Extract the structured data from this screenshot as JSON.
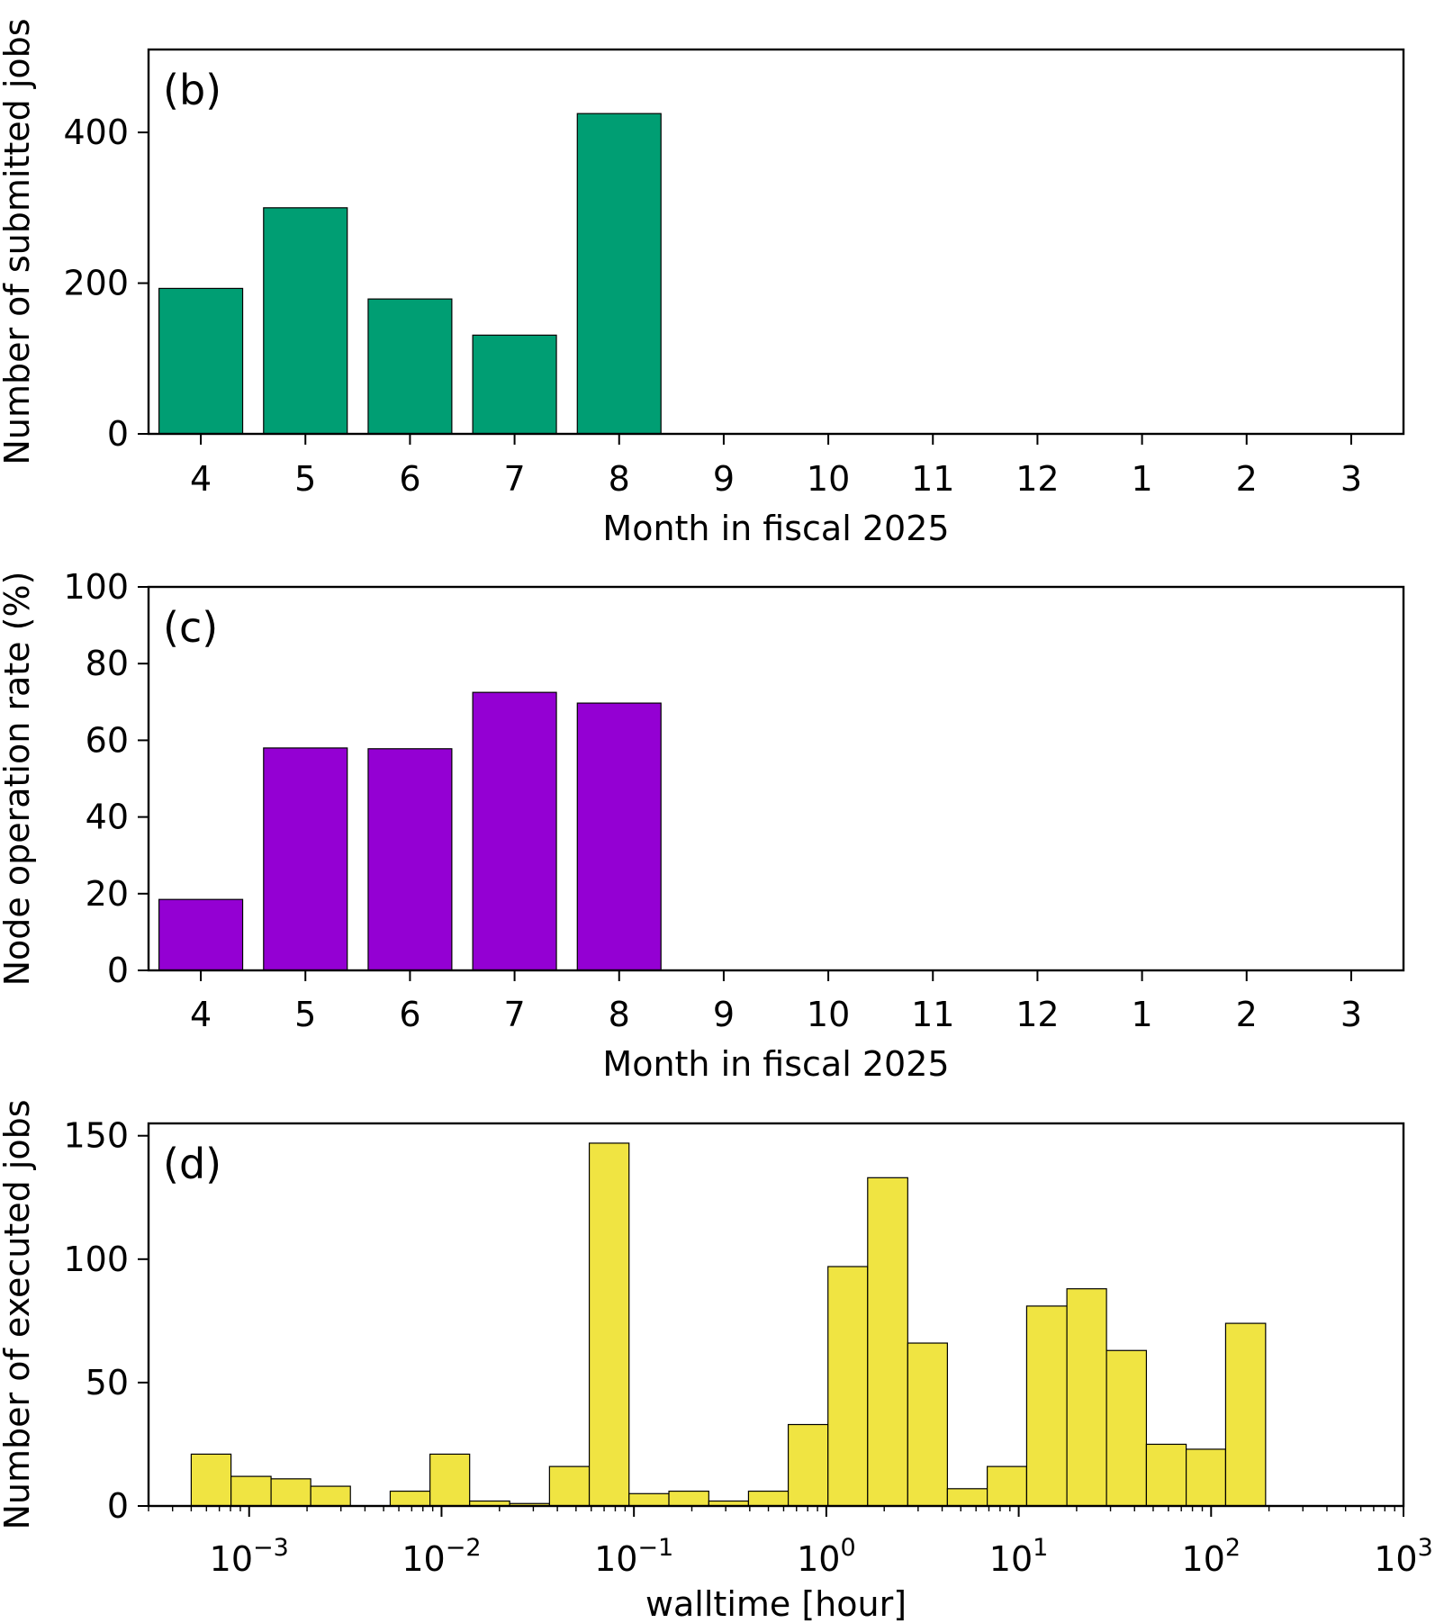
{
  "chart_data": [
    {
      "type": "bar",
      "panel_label": "(b)",
      "categories": [
        "4",
        "5",
        "6",
        "7",
        "8",
        "9",
        "10",
        "11",
        "12",
        "1",
        "2",
        "3"
      ],
      "values": [
        193,
        300,
        179,
        131,
        425,
        0,
        0,
        0,
        0,
        0,
        0,
        0
      ],
      "xlabel": "Month in fiscal 2025",
      "ylabel": "Number of submitted jobs",
      "ylim": [
        0,
        510
      ],
      "yticks": [
        0,
        200,
        400
      ],
      "color": "#009e73",
      "grid": false
    },
    {
      "type": "bar",
      "panel_label": "(c)",
      "categories": [
        "4",
        "5",
        "6",
        "7",
        "8",
        "9",
        "10",
        "11",
        "12",
        "1",
        "2",
        "3"
      ],
      "values": [
        18.5,
        58,
        57.8,
        72.5,
        69.7,
        0,
        0,
        0,
        0,
        0,
        0,
        0
      ],
      "xlabel": "Month in fiscal 2025",
      "ylabel": "Node operation rate (%)",
      "ylim": [
        0,
        100
      ],
      "yticks": [
        0,
        20,
        40,
        60,
        80,
        100
      ],
      "color": "#9400d3",
      "grid": false
    },
    {
      "type": "bar",
      "subtype": "histogram",
      "panel_label": "(d)",
      "xscale": "log",
      "xlim": [
        0.0003,
        1000
      ],
      "bin_edges": [
        0.0005,
        0.000805,
        0.0013,
        0.00209,
        0.00336,
        0.00541,
        0.00871,
        0.014,
        0.0226,
        0.0364,
        0.0586,
        0.0943,
        0.152,
        0.245,
        0.394,
        0.634,
        1.02,
        1.64,
        2.65,
        4.26,
        6.86,
        11.0,
        17.8,
        28.6,
        46.1,
        74.2,
        119,
        192
      ],
      "values": [
        21,
        12,
        11,
        8,
        0,
        6,
        21,
        2,
        1,
        16,
        147,
        5,
        6,
        2,
        6,
        33,
        97,
        133,
        66,
        7,
        16,
        81,
        88,
        63,
        25,
        23,
        74
      ],
      "xlabel": "walltime [hour]",
      "ylabel": "Number of executed jobs",
      "ylim": [
        0,
        155
      ],
      "yticks": [
        0,
        50,
        100,
        150
      ],
      "xticks": [
        {
          "base": "10",
          "exp": "−3",
          "value": 0.001
        },
        {
          "base": "10",
          "exp": "−2",
          "value": 0.01
        },
        {
          "base": "10",
          "exp": "−1",
          "value": 0.1
        },
        {
          "base": "10",
          "exp": "0",
          "value": 1
        },
        {
          "base": "10",
          "exp": "1",
          "value": 10
        },
        {
          "base": "10",
          "exp": "2",
          "value": 100
        },
        {
          "base": "10",
          "exp": "3",
          "value": 1000
        }
      ],
      "color": "#f0e442",
      "grid": false
    }
  ]
}
